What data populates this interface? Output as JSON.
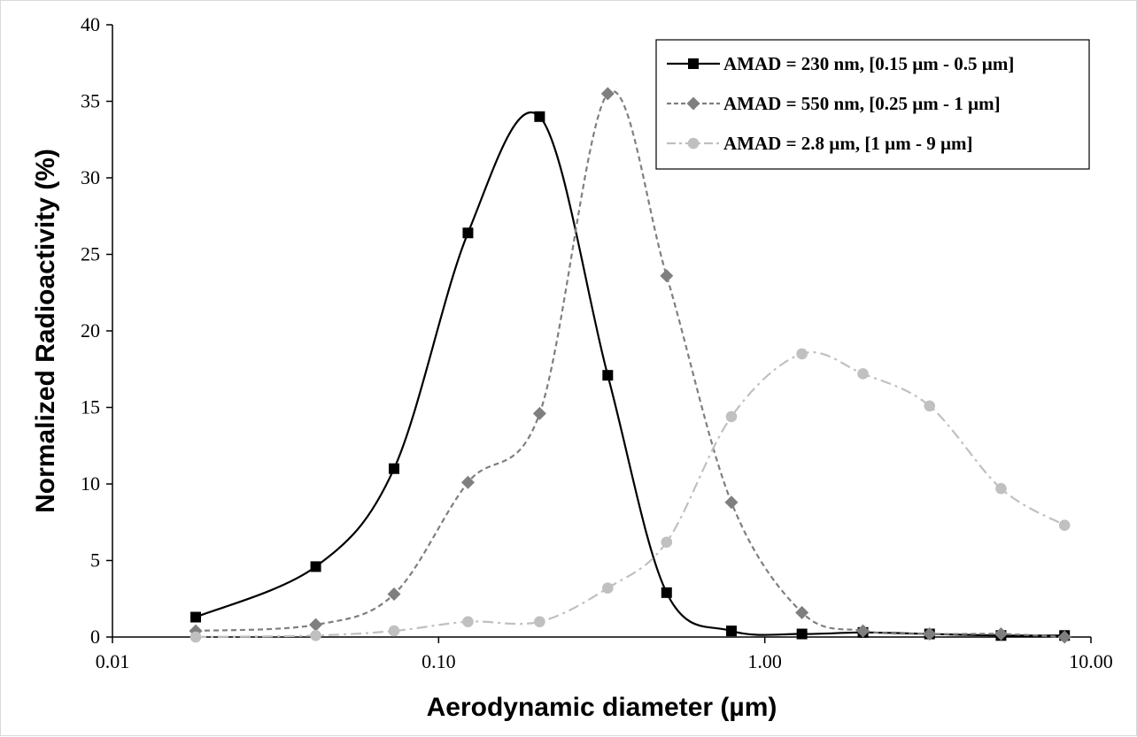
{
  "chart_data": {
    "type": "line",
    "xscale": "log",
    "xlabel": "Aerodynamic diameter (µm)",
    "ylabel": "Normalized Radioactivity (%)",
    "xlim": [
      0.01,
      10.0
    ],
    "ylim": [
      0,
      40
    ],
    "xticks": [
      "0.01",
      "0.10",
      "1.00",
      "10.00"
    ],
    "yticks": [
      "0",
      "5",
      "10",
      "15",
      "20",
      "25",
      "30",
      "35",
      "40"
    ],
    "grid": false,
    "legend_position": "top-right",
    "x": [
      0.018,
      0.042,
      0.073,
      0.123,
      0.204,
      0.33,
      0.5,
      0.79,
      1.3,
      2.0,
      3.2,
      5.3,
      8.3
    ],
    "series": [
      {
        "name": "AMAD = 230 nm, [0.15 µm - 0.5 µm]",
        "color": "#000000",
        "marker": "square",
        "line_style": "solid",
        "values": [
          1.3,
          4.6,
          11.0,
          26.4,
          34.0,
          17.1,
          2.9,
          0.4,
          0.2,
          0.3,
          0.2,
          0.1,
          0.1
        ]
      },
      {
        "name": "AMAD = 550 nm, [0.25 µm - 1 µm]",
        "color": "#7f7f7f",
        "marker": "diamond",
        "line_style": "dashed",
        "values": [
          0.4,
          0.8,
          2.8,
          10.1,
          14.6,
          35.5,
          23.6,
          8.8,
          1.6,
          0.4,
          0.2,
          0.2,
          0.0
        ]
      },
      {
        "name": "AMAD = 2.8 µm, [1 µm - 9 µm]",
        "color": "#c0c0c0",
        "marker": "circle",
        "line_style": "dashdot",
        "values": [
          0.0,
          0.1,
          0.4,
          1.0,
          1.0,
          3.2,
          6.2,
          14.4,
          18.5,
          17.2,
          15.1,
          9.7,
          7.3
        ]
      }
    ]
  }
}
